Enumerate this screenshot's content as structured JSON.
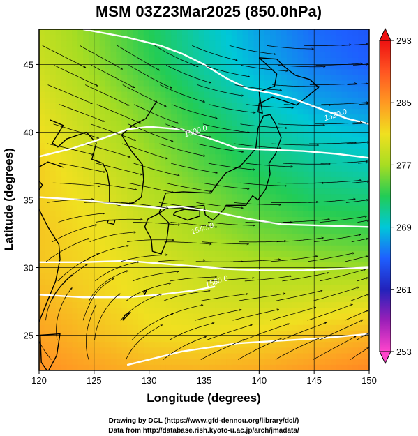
{
  "chart_data": {
    "type": "heatmap",
    "title": "MSM 03Z23Mar2025 (850.0hPa)",
    "xlabel": "Longitude (degrees)",
    "ylabel": "Latitude  (degrees)",
    "xlim": [
      120,
      150
    ],
    "ylim": [
      22.4,
      47.6
    ],
    "x_ticks": [
      {
        "value": 120,
        "label": "120"
      },
      {
        "value": 125,
        "label": "125"
      },
      {
        "value": 130,
        "label": "130"
      },
      {
        "value": 135,
        "label": "135"
      },
      {
        "value": 140,
        "label": "140"
      },
      {
        "value": 145,
        "label": "145"
      },
      {
        "value": 150,
        "label": "150"
      }
    ],
    "y_ticks": [
      {
        "value": 25,
        "label": "25"
      },
      {
        "value": 30,
        "label": "30"
      },
      {
        "value": 35,
        "label": "35"
      },
      {
        "value": 40,
        "label": "40"
      },
      {
        "value": 45,
        "label": "45"
      }
    ],
    "colorbar": {
      "min": 253,
      "max": 293,
      "ticks": [
        {
          "value": 293,
          "label": "293"
        },
        {
          "value": 285,
          "label": "285"
        },
        {
          "value": 277,
          "label": "277"
        },
        {
          "value": 269,
          "label": "269"
        },
        {
          "value": 261,
          "label": "261"
        },
        {
          "value": 253,
          "label": "253"
        }
      ],
      "colors": [
        "#ff44cc",
        "#9b1fb8",
        "#2222bb",
        "#1e5fff",
        "#00c8d8",
        "#22cc55",
        "#a8dd22",
        "#f0e020",
        "#ff9922",
        "#ff5522",
        "#ee1111"
      ]
    },
    "temperature_field": {
      "lon": [
        120,
        125,
        130,
        135,
        140,
        145,
        150
      ],
      "lat": [
        22.5,
        25,
        27.5,
        30,
        32.5,
        35,
        37.5,
        40,
        42.5,
        45,
        47.5
      ],
      "values": [
        [
          285.5,
          284.5,
          283.5,
          283.5,
          284.0,
          285.0,
          286.0
        ],
        [
          284.5,
          283.0,
          281.5,
          281.0,
          281.5,
          282.5,
          283.5
        ],
        [
          283.5,
          282.0,
          280.5,
          279.5,
          279.0,
          279.5,
          280.0
        ],
        [
          282.5,
          281.5,
          280.0,
          278.5,
          277.5,
          277.0,
          276.5
        ],
        [
          282.5,
          281.0,
          279.0,
          277.0,
          275.5,
          274.5,
          274.0
        ],
        [
          282.0,
          280.5,
          278.0,
          276.0,
          274.0,
          272.5,
          272.0
        ],
        [
          282.0,
          279.5,
          277.0,
          274.5,
          272.5,
          271.0,
          270.0
        ],
        [
          281.0,
          278.5,
          276.0,
          273.5,
          271.0,
          269.5,
          268.5
        ],
        [
          280.0,
          277.5,
          275.0,
          272.0,
          269.5,
          267.5,
          266.5
        ],
        [
          279.0,
          276.5,
          273.5,
          270.5,
          268.0,
          266.0,
          265.0
        ],
        [
          278.5,
          276.0,
          273.0,
          270.0,
          267.5,
          265.5,
          264.5
        ]
      ]
    },
    "contour_labels": [
      {
        "text": "1500.0",
        "lon": 134.3,
        "lat": 39.9
      },
      {
        "text": "1520.0",
        "lon": 147.0,
        "lat": 41.1
      },
      {
        "text": "1540.0",
        "lon": 134.9,
        "lat": 32.7
      },
      {
        "text": "1560.0",
        "lon": 136.2,
        "lat": 28.8
      }
    ],
    "wind_field": {
      "description": "streamlines of 850hPa wind",
      "lon": [
        120,
        125,
        130,
        135,
        140,
        145,
        150
      ],
      "lat": [
        22.5,
        27.5,
        32.5,
        37.5,
        42.5,
        47.5
      ],
      "u": [
        [
          -2,
          -1,
          2,
          4,
          5,
          6,
          6
        ],
        [
          1,
          2,
          5,
          7,
          8,
          9,
          9
        ],
        [
          6,
          8,
          10,
          11,
          12,
          12,
          12
        ],
        [
          10,
          11,
          12,
          13,
          14,
          14,
          14
        ],
        [
          10,
          11,
          12,
          13,
          14,
          15,
          15
        ],
        [
          9,
          10,
          11,
          12,
          13,
          14,
          14
        ]
      ],
      "v": [
        [
          1,
          2,
          2,
          2,
          3,
          3,
          4
        ],
        [
          2,
          3,
          2,
          1,
          1,
          2,
          3
        ],
        [
          3,
          2,
          0,
          -1,
          0,
          1,
          2
        ],
        [
          -1,
          -2,
          -3,
          -2,
          -1,
          0,
          1
        ],
        [
          -3,
          -4,
          -5,
          -3,
          -1,
          0,
          1
        ],
        [
          -4,
          -5,
          -6,
          -4,
          -2,
          0,
          1
        ]
      ]
    }
  },
  "credits": {
    "line1": "Drawing by DCL (https://www.gfd-dennou.org/library/dcl/)",
    "line2": "Data from http://database.rish.kyoto-u.ac.jp/arch/jmadata/"
  }
}
